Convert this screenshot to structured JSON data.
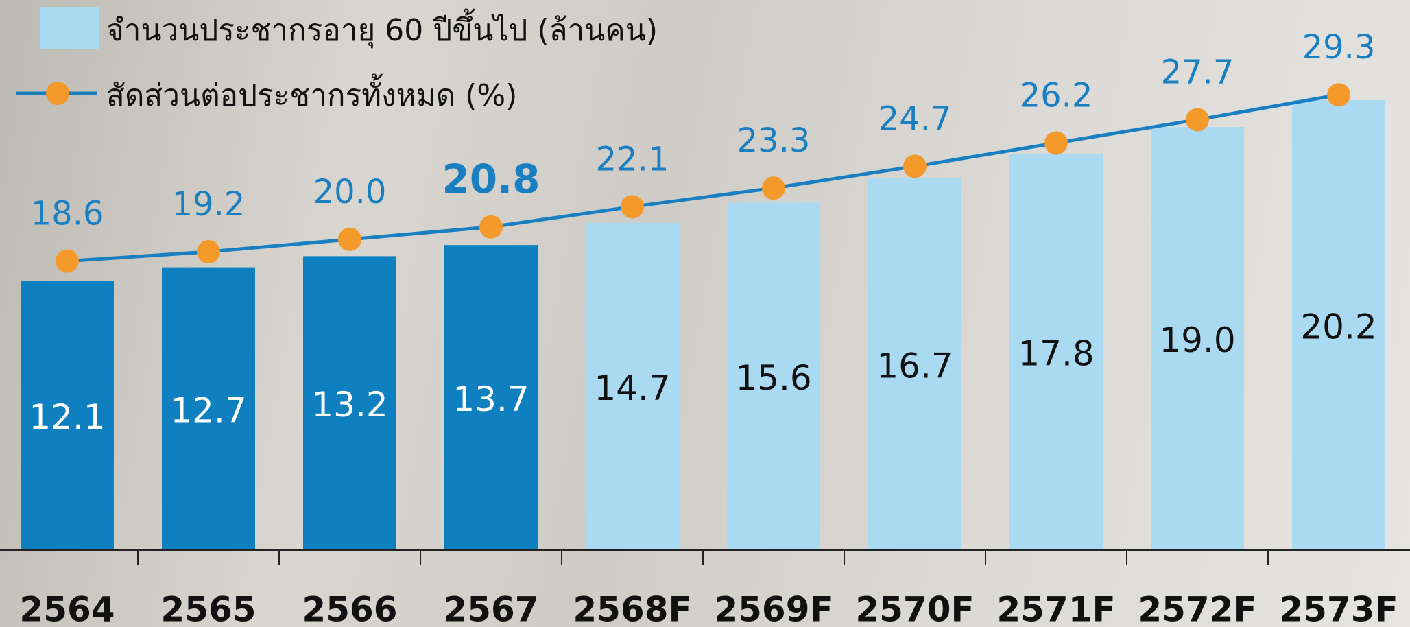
{
  "chart_data": {
    "type": "bar",
    "categories": [
      "2564",
      "2565",
      "2566",
      "2567",
      "2568F",
      "2569F",
      "2570F",
      "2571F",
      "2572F",
      "2573F"
    ],
    "series": [
      {
        "name": "จำนวนประชากรอายุ 60 ปีขึ้นไป (ล้านคน)",
        "type": "bar",
        "color": "#a9daf2",
        "colors": [
          "#0e80c0",
          "#0e80c0",
          "#0e80c0",
          "#0e80c0",
          "#a9daf2",
          "#a9daf2",
          "#a9daf2",
          "#a9daf2",
          "#a9daf2",
          "#a9daf2"
        ],
        "values": [
          12.1,
          12.7,
          13.2,
          13.7,
          14.7,
          15.6,
          16.7,
          17.8,
          19.0,
          20.2
        ],
        "value_labels": [
          "12.1",
          "12.7",
          "13.2",
          "13.7",
          "14.7",
          "15.6",
          "16.7",
          "17.8",
          "19.0",
          "20.2"
        ]
      },
      {
        "name": "สัดส่วนต่อประชากรทั้งหมด (%)",
        "type": "line",
        "axis": "y2",
        "color": "#1a7fc1",
        "marker_color": "#f39a2b",
        "values": [
          18.6,
          19.2,
          20.0,
          20.8,
          22.1,
          23.3,
          24.7,
          26.2,
          27.7,
          29.3
        ],
        "value_labels": [
          "18.6",
          "19.2",
          "20.0",
          "20.8",
          "22.1",
          "23.3",
          "24.7",
          "26.2",
          "27.7",
          "29.3"
        ]
      }
    ],
    "ylim": [
      0,
      24.7
    ],
    "y2lim": [
      0,
      35.4
    ],
    "grid": false,
    "legend": "top-left"
  }
}
